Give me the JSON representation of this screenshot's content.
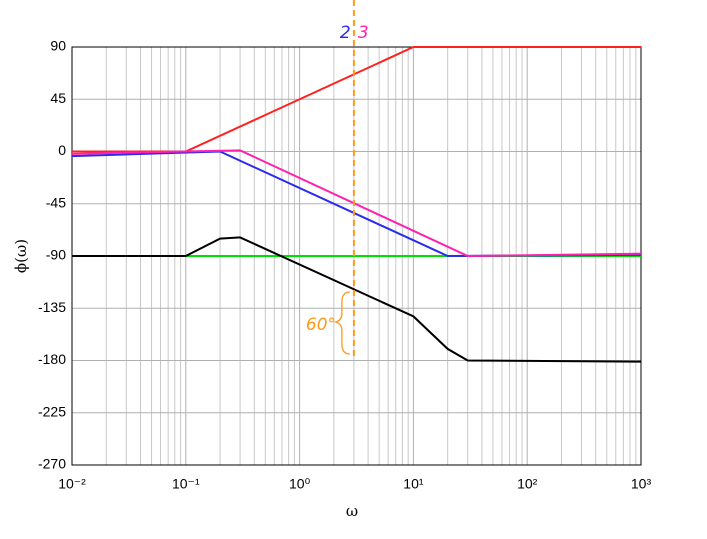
{
  "chart_data": {
    "type": "line",
    "log_x": true,
    "grid": true,
    "xlabel": "ω",
    "ylabel": "ϕ(ω)",
    "xlim": [
      0.01,
      1000
    ],
    "ylim": [
      -270,
      90
    ],
    "xticks": [
      {
        "value": 0.01,
        "label": "10⁻²"
      },
      {
        "value": 0.1,
        "label": "10⁻¹"
      },
      {
        "value": 1,
        "label": "10⁰"
      },
      {
        "value": 10,
        "label": "10¹"
      },
      {
        "value": 100,
        "label": "10²"
      },
      {
        "value": 1000,
        "label": "10³"
      }
    ],
    "minor_xticks": [
      0.02,
      0.03,
      0.04,
      0.05,
      0.06,
      0.07,
      0.08,
      0.09,
      0.2,
      0.3,
      0.4,
      0.5,
      0.6,
      0.7,
      0.8,
      0.9,
      2,
      3,
      4,
      5,
      6,
      7,
      8,
      9,
      20,
      30,
      40,
      50,
      60,
      70,
      80,
      90,
      200,
      300,
      400,
      500,
      600,
      700,
      800,
      900
    ],
    "yticks": [
      -270,
      -225,
      -180,
      -135,
      -90,
      -45,
      0,
      45,
      90
    ],
    "series": [
      {
        "color": "#00e000",
        "x": [
          0.01,
          1000
        ],
        "values": [
          -90,
          -90
        ]
      },
      {
        "color": "#ff2020",
        "x": [
          0.01,
          0.1,
          10,
          1000
        ],
        "values": [
          0,
          0,
          90,
          90
        ]
      },
      {
        "color": "#2a2aee",
        "x": [
          0.01,
          0.2,
          20,
          1000
        ],
        "values": [
          -4,
          0,
          -90,
          -89
        ]
      },
      {
        "color": "#ff20b0",
        "x": [
          0.01,
          0.3,
          30,
          1000
        ],
        "values": [
          -2,
          1,
          -90,
          -88
        ]
      },
      {
        "color": "#000000",
        "x": [
          0.01,
          0.1,
          0.2,
          0.3,
          10,
          20,
          30,
          1000
        ],
        "values": [
          -90,
          -90,
          -75,
          -74,
          -142,
          -170,
          -180,
          -181
        ]
      }
    ],
    "vline": {
      "x": 3,
      "color": "#ff9a1a"
    },
    "annotations": [
      {
        "text": "2",
        "color": "#2a2aee"
      },
      {
        "text": "3",
        "color": "#ff20b0"
      },
      {
        "text": "60°",
        "color": "#ff9a1a"
      }
    ]
  }
}
